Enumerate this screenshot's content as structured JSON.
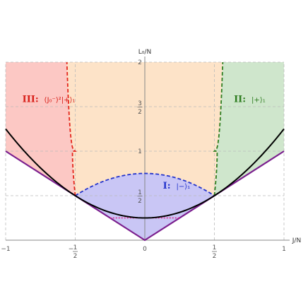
{
  "chart_data": {
    "type": "area",
    "xlabel": "J/N",
    "ylabel": "L₀/N",
    "xlim": [
      -1,
      1
    ],
    "ylim": [
      0,
      2
    ],
    "grid": true,
    "x_ticks": [
      {
        "value": -1,
        "label": "−1"
      },
      {
        "value": -0.5,
        "label": "−",
        "sub": "1",
        "den": "2"
      },
      {
        "value": 0,
        "label": "0"
      },
      {
        "value": 0.5,
        "label": "",
        "sub": "1",
        "den": "2"
      },
      {
        "value": 1,
        "label": "1"
      }
    ],
    "y_ticks": [
      {
        "value": 0.5,
        "num": "1",
        "den": "2"
      },
      {
        "value": 1,
        "label": "1"
      },
      {
        "value": 1.5,
        "num": "3",
        "den": "2"
      },
      {
        "value": 2,
        "label": "2"
      }
    ],
    "colors": {
      "region_I": "#c9c6f5",
      "region_II": "#cfe6cc",
      "region_III": "#fcc8c4",
      "region_center": "#fde3c8",
      "boundary_lower": "#7b1f8e",
      "parabola": "#000000",
      "red_dashed": "#e3261c",
      "green_dashed": "#2e7d20",
      "blue_dashed": "#2233cc",
      "pink_dotted": "#e0208a"
    },
    "regions": [
      {
        "id": "I",
        "roman": "I:",
        "state": "|−⟩₁",
        "color": "#2233cc",
        "at": [
          0.13,
          0.58
        ]
      },
      {
        "id": "II",
        "roman": "II:",
        "state": "|+⟩₁",
        "color": "#2e7d20",
        "at": [
          0.64,
          1.55
        ]
      },
      {
        "id": "III",
        "roman": "III:",
        "state": "(J₀⁻)²|+⟩₁",
        "color": "#d8201a",
        "at": [
          -0.88,
          1.55
        ]
      }
    ],
    "curves": {
      "lower_boundary": {
        "equation": "L0/N = |J/N|",
        "x_range": [
          -1,
          1
        ]
      },
      "parabola": {
        "equation": "L0/N = 1/4 + (J/N)^2",
        "x_range": [
          -1,
          1
        ]
      },
      "blue_dashed": {
        "equation": "L0/N = 3/4 - (J/N)^2",
        "x_range": [
          -0.5,
          0.5
        ]
      },
      "pink_dotted": {
        "equation": "L0/N = 1/4",
        "x_range": [
          -0.25,
          0.25
        ]
      },
      "red_dashed": {
        "x_range": [
          -0.56,
          -0.5
        ],
        "y_range": [
          1,
          2
        ]
      },
      "green_dashed": {
        "x_range": [
          0.5,
          0.56
        ],
        "y_range": [
          1,
          2
        ]
      }
    }
  }
}
